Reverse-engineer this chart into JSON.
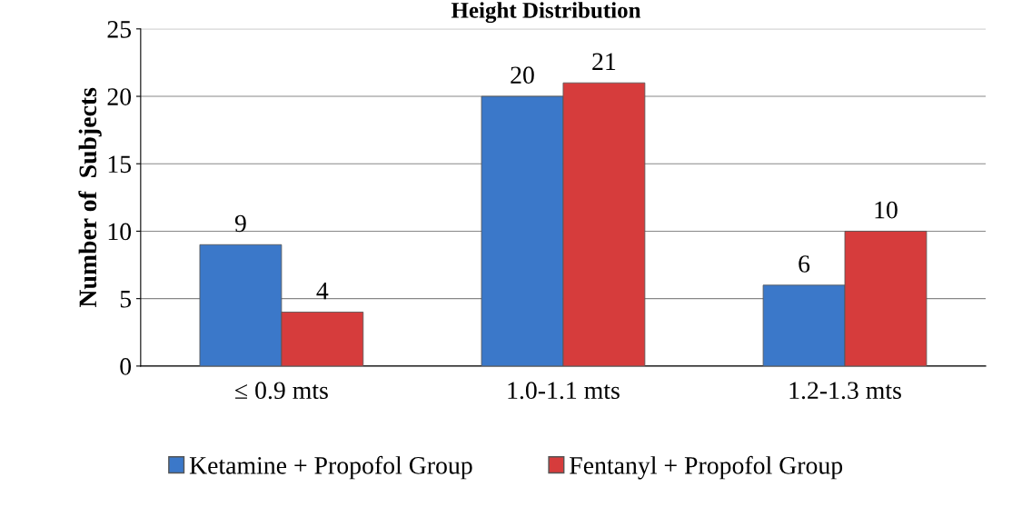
{
  "chart_data": {
    "type": "bar",
    "title": "Height Distribution",
    "ylabel": "Number of  Subjects",
    "categories": [
      "≤ 0.9 mts",
      "1.0-1.1 mts",
      "1.2-1.3 mts"
    ],
    "series": [
      {
        "name": "Ketamine + Propofol Group",
        "color": "#3b78c9",
        "values": [
          9,
          20,
          6
        ]
      },
      {
        "name": "Fentanyl + Propofol Group",
        "color": "#d63c3c",
        "values": [
          4,
          21,
          10
        ]
      }
    ],
    "ylim": [
      0,
      25
    ],
    "yticks": [
      0,
      5,
      10,
      15,
      20,
      25
    ],
    "grid": "y",
    "legend": "bottom",
    "data_labels": true
  }
}
